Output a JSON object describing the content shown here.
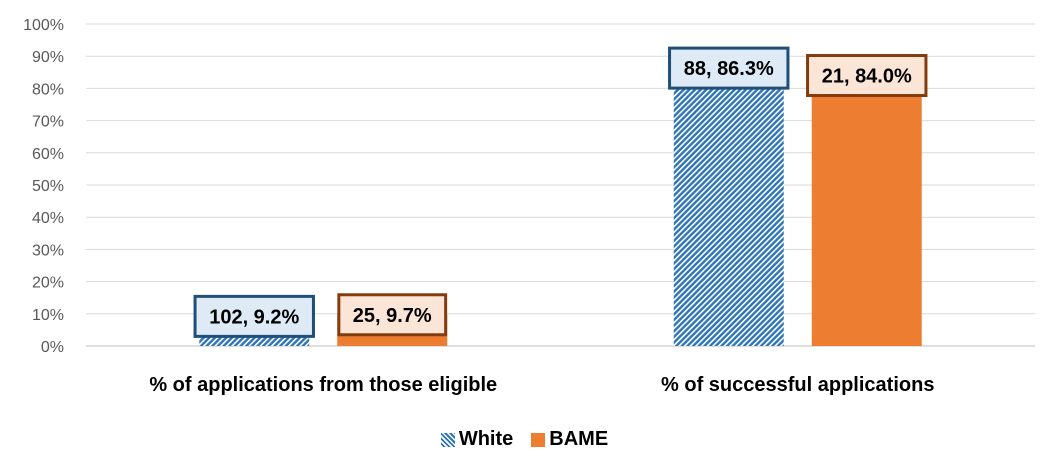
{
  "chart_data": {
    "type": "bar",
    "title": "",
    "xlabel": "",
    "ylabel": "",
    "ylim": [
      0,
      100
    ],
    "ytick_labels": [
      "0%",
      "10%",
      "20%",
      "30%",
      "40%",
      "50%",
      "60%",
      "70%",
      "80%",
      "90%",
      "100%"
    ],
    "grid": true,
    "legend_position": "bottom",
    "categories": [
      "% of applications from those eligible",
      "% of successful applications"
    ],
    "series": [
      {
        "name": "White",
        "values": [
          9.2,
          86.3
        ],
        "data_labels": [
          "102, 9.2%",
          "88, 86.3%"
        ],
        "color": "#2e75b6",
        "pattern": "diagonal-hatch",
        "label_border_color": "#1f4e79",
        "label_fill_color": "#deebf7"
      },
      {
        "name": "BAME",
        "values": [
          9.7,
          84.0
        ],
        "data_labels": [
          "25, 9.7%",
          "21, 84.0%"
        ],
        "color": "#ed7d31",
        "pattern": "solid",
        "label_border_color": "#843c0c",
        "label_fill_color": "#fbe5d6"
      }
    ]
  }
}
